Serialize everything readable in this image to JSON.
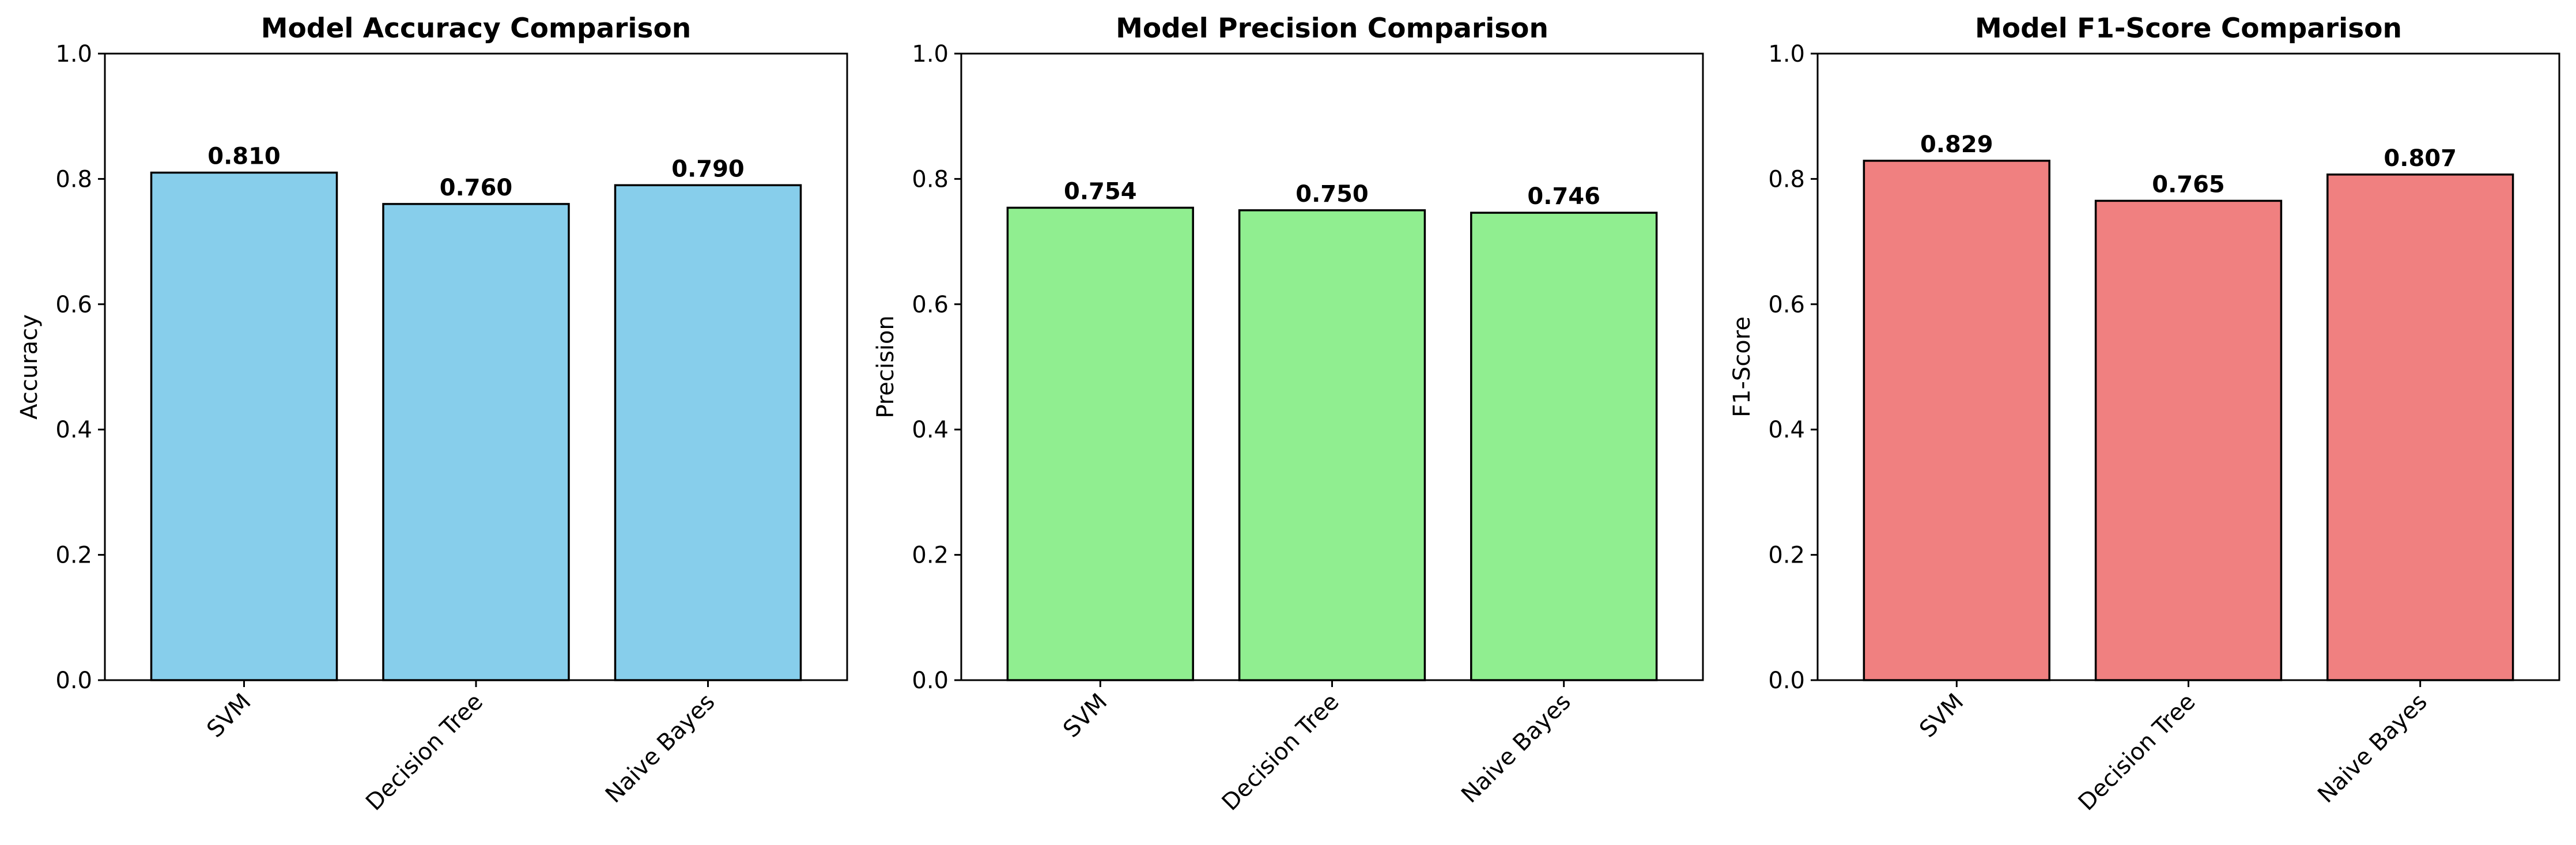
{
  "chart_data": [
    {
      "type": "bar",
      "title": "Model Accuracy Comparison",
      "xlabel": "",
      "ylabel": "Accuracy",
      "categories": [
        "SVM",
        "Decision Tree",
        "Naive Bayes"
      ],
      "values": [
        0.81,
        0.76,
        0.79
      ],
      "value_labels": [
        "0.810",
        "0.760",
        "0.790"
      ],
      "ylim": [
        0,
        1.0
      ],
      "yticks": [
        0.0,
        0.2,
        0.4,
        0.6,
        0.8,
        1.0
      ],
      "ytick_labels": [
        "0.0",
        "0.2",
        "0.4",
        "0.6",
        "0.8",
        "1.0"
      ],
      "bar_color": "#87CEEB",
      "edge_color": "#000000",
      "grid": false,
      "xtick_rotation_deg": 45
    },
    {
      "type": "bar",
      "title": "Model Precision Comparison",
      "xlabel": "",
      "ylabel": "Precision",
      "categories": [
        "SVM",
        "Decision Tree",
        "Naive Bayes"
      ],
      "values": [
        0.754,
        0.75,
        0.746
      ],
      "value_labels": [
        "0.754",
        "0.750",
        "0.746"
      ],
      "ylim": [
        0,
        1.0
      ],
      "yticks": [
        0.0,
        0.2,
        0.4,
        0.6,
        0.8,
        1.0
      ],
      "ytick_labels": [
        "0.0",
        "0.2",
        "0.4",
        "0.6",
        "0.8",
        "1.0"
      ],
      "bar_color": "#90EE90",
      "edge_color": "#000000",
      "grid": false,
      "xtick_rotation_deg": 45
    },
    {
      "type": "bar",
      "title": "Model F1-Score Comparison",
      "xlabel": "",
      "ylabel": "F1-Score",
      "categories": [
        "SVM",
        "Decision Tree",
        "Naive Bayes"
      ],
      "values": [
        0.829,
        0.765,
        0.807
      ],
      "value_labels": [
        "0.829",
        "0.765",
        "0.807"
      ],
      "ylim": [
        0,
        1.0
      ],
      "yticks": [
        0.0,
        0.2,
        0.4,
        0.6,
        0.8,
        1.0
      ],
      "ytick_labels": [
        "0.0",
        "0.2",
        "0.4",
        "0.6",
        "0.8",
        "1.0"
      ],
      "bar_color": "#F08080",
      "edge_color": "#000000",
      "grid": false,
      "xtick_rotation_deg": 45
    }
  ]
}
